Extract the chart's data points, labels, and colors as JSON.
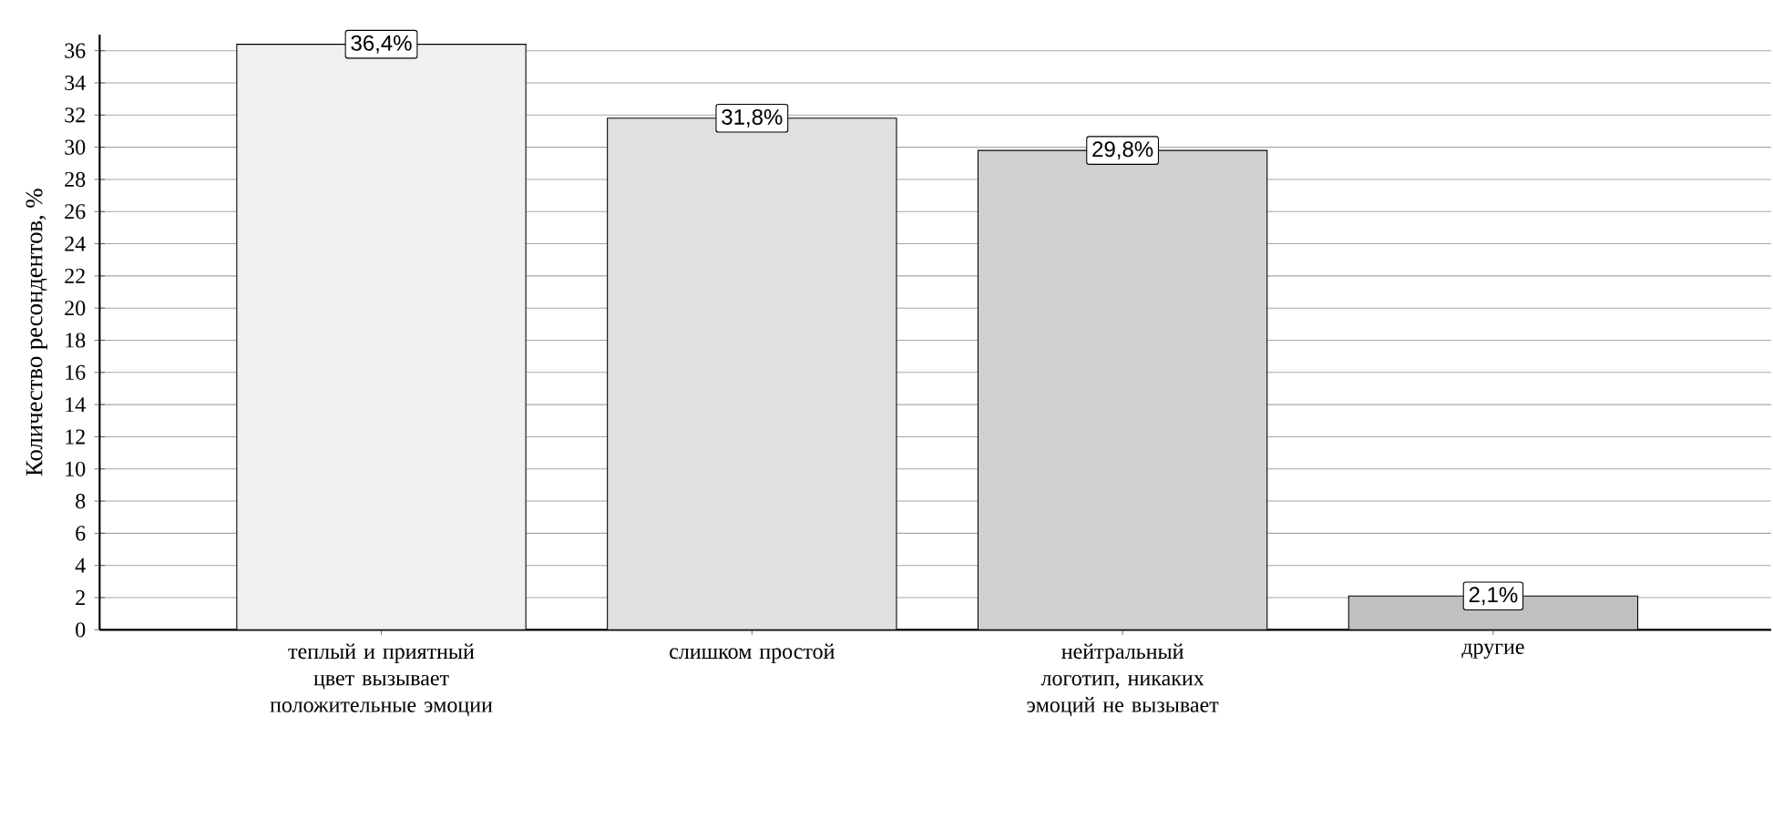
{
  "chart_data": {
    "type": "bar",
    "ylabel": "Количество ресондентов, %",
    "categories": [
      "теплый и приятный цвет вызывает положительные эмоции",
      "слишком простой",
      "нейтральный логотип, никаких эмоций не вызывает",
      "другие"
    ],
    "values": [
      36.4,
      31.8,
      29.8,
      2.1
    ],
    "value_labels": [
      "36,4%",
      "31,8%",
      "29,8%",
      "2,1%"
    ],
    "colors": [
      "#f0f0f0",
      "#e0e0e0",
      "#d0d0d0",
      "#c0c0c0"
    ],
    "ylim": [
      0,
      37
    ],
    "yticks": [
      0,
      2,
      4,
      6,
      8,
      10,
      12,
      14,
      16,
      18,
      20,
      22,
      24,
      26,
      28,
      30,
      32,
      34,
      36
    ],
    "grid": "y"
  }
}
